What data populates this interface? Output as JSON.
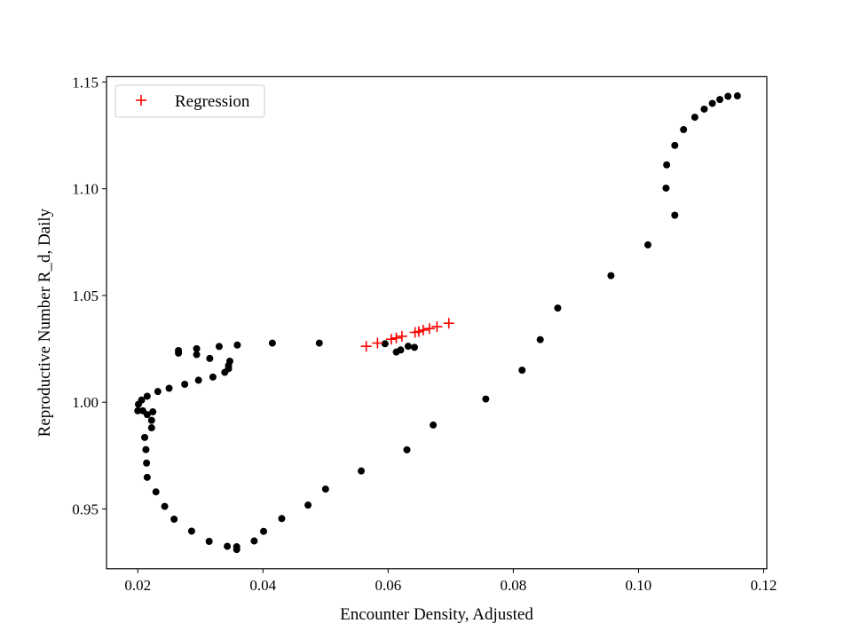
{
  "chart_data": {
    "type": "scatter",
    "title": "",
    "xlabel": "Encounter Density, Adjusted",
    "ylabel": "Reproductive Number R_d, Daily",
    "xlim": [
      0.015,
      0.1205
    ],
    "ylim": [
      0.922,
      1.1525
    ],
    "xticks": [
      0.02,
      0.04,
      0.06,
      0.08,
      0.1,
      0.12
    ],
    "xtick_labels": [
      "0.02",
      "0.04",
      "0.06",
      "0.08",
      "0.10",
      "0.12"
    ],
    "yticks": [
      0.95,
      1.0,
      1.05,
      1.1,
      1.15
    ],
    "ytick_labels": [
      "0.95",
      "1.00",
      "1.05",
      "1.10",
      "1.15"
    ],
    "grid": false,
    "legend": {
      "position": "top-left"
    },
    "series": [
      {
        "marker": "dot",
        "color": "#000000",
        "points": [
          [
            0.1158,
            1.1435
          ],
          [
            0.1143,
            1.1433
          ],
          [
            0.113,
            1.1418
          ],
          [
            0.1118,
            1.14
          ],
          [
            0.1105,
            1.1373
          ],
          [
            0.109,
            1.1335
          ],
          [
            0.1072,
            1.1277
          ],
          [
            0.1058,
            1.1203
          ],
          [
            0.1045,
            1.1112
          ],
          [
            0.1044,
            1.1003
          ],
          [
            0.1058,
            1.0876
          ],
          [
            0.1015,
            1.0737
          ],
          [
            0.0956,
            1.0593
          ],
          [
            0.0871,
            1.0441
          ],
          [
            0.0843,
            1.0293
          ],
          [
            0.0814,
            1.015
          ],
          [
            0.0756,
            1.0015
          ],
          [
            0.0672,
            0.9893
          ],
          [
            0.063,
            0.9777
          ],
          [
            0.0557,
            0.9678
          ],
          [
            0.05,
            0.9593
          ],
          [
            0.0472,
            0.9518
          ],
          [
            0.043,
            0.9455
          ],
          [
            0.0401,
            0.9395
          ],
          [
            0.0386,
            0.935
          ],
          [
            0.0358,
            0.931
          ],
          [
            0.0358,
            0.9323
          ],
          [
            0.0343,
            0.9325
          ],
          [
            0.0314,
            0.9348
          ],
          [
            0.0286,
            0.9396
          ],
          [
            0.0258,
            0.9452
          ],
          [
            0.0243,
            0.9512
          ],
          [
            0.0229,
            0.958
          ],
          [
            0.0215,
            0.9648
          ],
          [
            0.0214,
            0.9715
          ],
          [
            0.0213,
            0.9778
          ],
          [
            0.0211,
            0.9835
          ],
          [
            0.0222,
            0.988
          ],
          [
            0.0222,
            0.9915
          ],
          [
            0.0215,
            0.9942
          ],
          [
            0.0224,
            0.9955
          ],
          [
            0.0208,
            0.996
          ],
          [
            0.02,
            0.996
          ],
          [
            0.0201,
            0.999
          ],
          [
            0.0206,
            1.001
          ],
          [
            0.0215,
            1.0028
          ],
          [
            0.0232,
            1.005
          ],
          [
            0.025,
            1.0065
          ],
          [
            0.0275,
            1.0084
          ],
          [
            0.0297,
            1.0103
          ],
          [
            0.032,
            1.0118
          ],
          [
            0.0339,
            1.014
          ],
          [
            0.0345,
            1.0157
          ],
          [
            0.0345,
            1.0172
          ],
          [
            0.0347,
            1.0192
          ],
          [
            0.0315,
            1.0205
          ],
          [
            0.0294,
            1.0223
          ],
          [
            0.0265,
            1.023
          ],
          [
            0.0265,
            1.0242
          ],
          [
            0.0294,
            1.0251
          ],
          [
            0.033,
            1.0261
          ],
          [
            0.0359,
            1.0268
          ],
          [
            0.0415,
            1.0277
          ],
          [
            0.049,
            1.0277
          ],
          [
            0.0595,
            1.0274
          ],
          [
            0.0613,
            1.0235
          ],
          [
            0.062,
            1.0245
          ],
          [
            0.0632,
            1.0262
          ],
          [
            0.0642,
            1.0257
          ]
        ]
      },
      {
        "name": "Regression",
        "marker": "plus",
        "color": "#ff0000",
        "points": [
          [
            0.0565,
            1.0262
          ],
          [
            0.0583,
            1.0277
          ],
          [
            0.0605,
            1.0295
          ],
          [
            0.0613,
            1.0301
          ],
          [
            0.0622,
            1.0309
          ],
          [
            0.0643,
            1.0327
          ],
          [
            0.0649,
            1.0331
          ],
          [
            0.0656,
            1.0338
          ],
          [
            0.0666,
            1.0345
          ],
          [
            0.0678,
            1.0354
          ],
          [
            0.0697,
            1.037
          ]
        ]
      }
    ]
  }
}
